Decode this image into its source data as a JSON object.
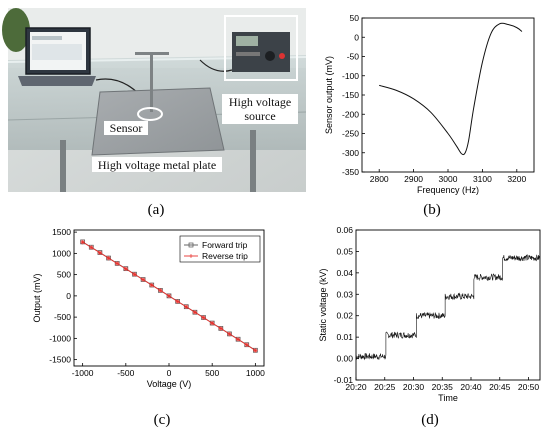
{
  "photo": {
    "sensor_label": "Sensor",
    "hv_source_label_line1": "High voltage",
    "hv_source_label_line2": "source",
    "plate_label": "High voltage metal plate"
  },
  "panel_labels": {
    "a": "(a)",
    "b": "(b)",
    "c": "(c)",
    "d": "(d)"
  },
  "chart_data": [
    {
      "id": "b",
      "type": "line",
      "xlabel": "Frequency (Hz)",
      "ylabel": "Sensor output (mV)",
      "xlim": [
        2750,
        3250
      ],
      "ylim": [
        -350,
        50
      ],
      "xticks": [
        2800,
        2900,
        3000,
        3100,
        3200
      ],
      "yticks": [
        50,
        0,
        -50,
        -100,
        -150,
        -200,
        -250,
        -300,
        -350
      ],
      "grid": false,
      "x": [
        2800,
        2850,
        2900,
        2950,
        3000,
        3025,
        3040,
        3050,
        3060,
        3075,
        3100,
        3125,
        3150,
        3175,
        3200,
        3215
      ],
      "y": [
        -125,
        -138,
        -160,
        -195,
        -250,
        -283,
        -303,
        -300,
        -268,
        -182,
        -65,
        10,
        35,
        33,
        25,
        15
      ]
    },
    {
      "id": "c",
      "type": "line",
      "xlabel": "Voltage (V)",
      "ylabel": "Output (mV)",
      "xlim": [
        -1100,
        1100
      ],
      "ylim": [
        -1650,
        1550
      ],
      "xticks": [
        -1000,
        -500,
        0,
        500,
        1000
      ],
      "yticks": [
        1500,
        1000,
        500,
        0,
        -500,
        -1000,
        -1500
      ],
      "grid": false,
      "legend_position": "top-right",
      "x": [
        -1000,
        -900,
        -800,
        -700,
        -600,
        -500,
        -400,
        -300,
        -200,
        -100,
        0,
        100,
        200,
        300,
        400,
        500,
        600,
        700,
        800,
        900,
        1000
      ],
      "series": [
        {
          "name": "Forward trip",
          "color": "#555555",
          "marker": "square",
          "values": [
            1270,
            1145,
            1020,
            890,
            765,
            640,
            510,
            385,
            255,
            130,
            0,
            -130,
            -255,
            -385,
            -510,
            -640,
            -765,
            -895,
            -1020,
            -1150,
            -1280
          ]
        },
        {
          "name": "Reverse trip",
          "color": "#e8322e",
          "marker": "star",
          "values": [
            1265,
            1140,
            1015,
            888,
            762,
            636,
            508,
            382,
            253,
            128,
            -2,
            -132,
            -257,
            -386,
            -512,
            -642,
            -768,
            -897,
            -1023,
            -1152,
            -1283
          ]
        }
      ]
    },
    {
      "id": "d",
      "type": "line",
      "xlabel": "Time",
      "ylabel": "Static voltage (kV)",
      "xlim": [
        0,
        32
      ],
      "ylim": [
        -0.01,
        0.06
      ],
      "xticks": [
        "20:20",
        "20:25",
        "20:30",
        "20:35",
        "20:40",
        "20:45",
        "20:50"
      ],
      "xtick_values": [
        0,
        5,
        10,
        15,
        20,
        25,
        30
      ],
      "yticks": [
        0.06,
        0.05,
        0.04,
        0.03,
        0.02,
        0.01,
        0.0,
        -0.01
      ],
      "grid": false,
      "steps": [
        {
          "start": 0,
          "end": 5.2,
          "level": 0.001
        },
        {
          "start": 5.2,
          "end": 10.5,
          "level": 0.011
        },
        {
          "start": 10.5,
          "end": 15.5,
          "level": 0.02
        },
        {
          "start": 15.5,
          "end": 20.5,
          "level": 0.029
        },
        {
          "start": 20.5,
          "end": 25.5,
          "level": 0.038
        },
        {
          "start": 25.5,
          "end": 32,
          "level": 0.047
        }
      ],
      "noise_amplitude": 0.0015
    }
  ]
}
